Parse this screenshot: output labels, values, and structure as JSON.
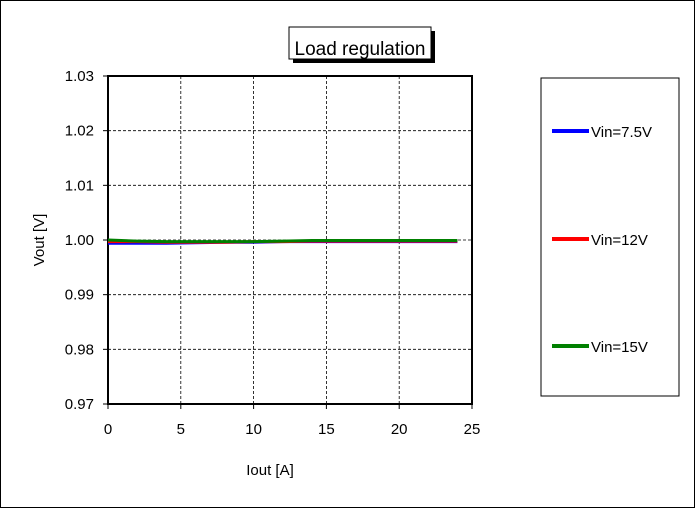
{
  "chart_data": {
    "type": "line",
    "title": "Load regulation",
    "xlabel": "Iout [A]",
    "ylabel": "Vout [V]",
    "xlim": [
      0,
      25
    ],
    "ylim": [
      0.97,
      1.03
    ],
    "xticks": [
      0,
      5,
      10,
      15,
      20,
      25
    ],
    "yticks": [
      0.97,
      0.98,
      0.99,
      1.0,
      1.01,
      1.02,
      1.03
    ],
    "xtick_labels": [
      "0",
      "5",
      "10",
      "15",
      "20",
      "25"
    ],
    "ytick_labels": [
      "0.97",
      "0.98",
      "0.99",
      "1.00",
      "1.01",
      "1.02",
      "1.03"
    ],
    "grid": true,
    "legend_position": "right",
    "series": [
      {
        "name": "Vin=7.5V",
        "color": "#0000ff",
        "x": [
          0,
          2,
          4,
          6,
          8,
          10,
          12,
          14,
          16,
          18,
          20,
          22,
          24
        ],
        "y": [
          0.9994,
          0.9994,
          0.9994,
          0.9995,
          0.9996,
          0.9996,
          0.9997,
          0.9997,
          0.9997,
          0.9997,
          0.9997,
          0.9997,
          0.9997
        ]
      },
      {
        "name": "Vin=12V",
        "color": "#ff0000",
        "x": [
          0,
          2,
          4,
          6,
          8,
          10,
          12,
          14,
          16,
          18,
          20,
          22,
          24
        ],
        "y": [
          0.9997,
          0.9997,
          0.9996,
          0.9996,
          0.9996,
          0.9997,
          0.9997,
          0.9998,
          0.9998,
          0.9998,
          0.9998,
          0.9998,
          0.9998
        ]
      },
      {
        "name": "Vin=15V",
        "color": "#008000",
        "x": [
          0,
          2,
          4,
          6,
          8,
          10,
          12,
          14,
          16,
          18,
          20,
          22,
          24
        ],
        "y": [
          1.0,
          0.9998,
          0.9997,
          0.9997,
          0.9997,
          0.9997,
          0.9998,
          0.9999,
          0.9999,
          0.9999,
          0.9999,
          0.9999,
          0.9999
        ]
      }
    ]
  }
}
